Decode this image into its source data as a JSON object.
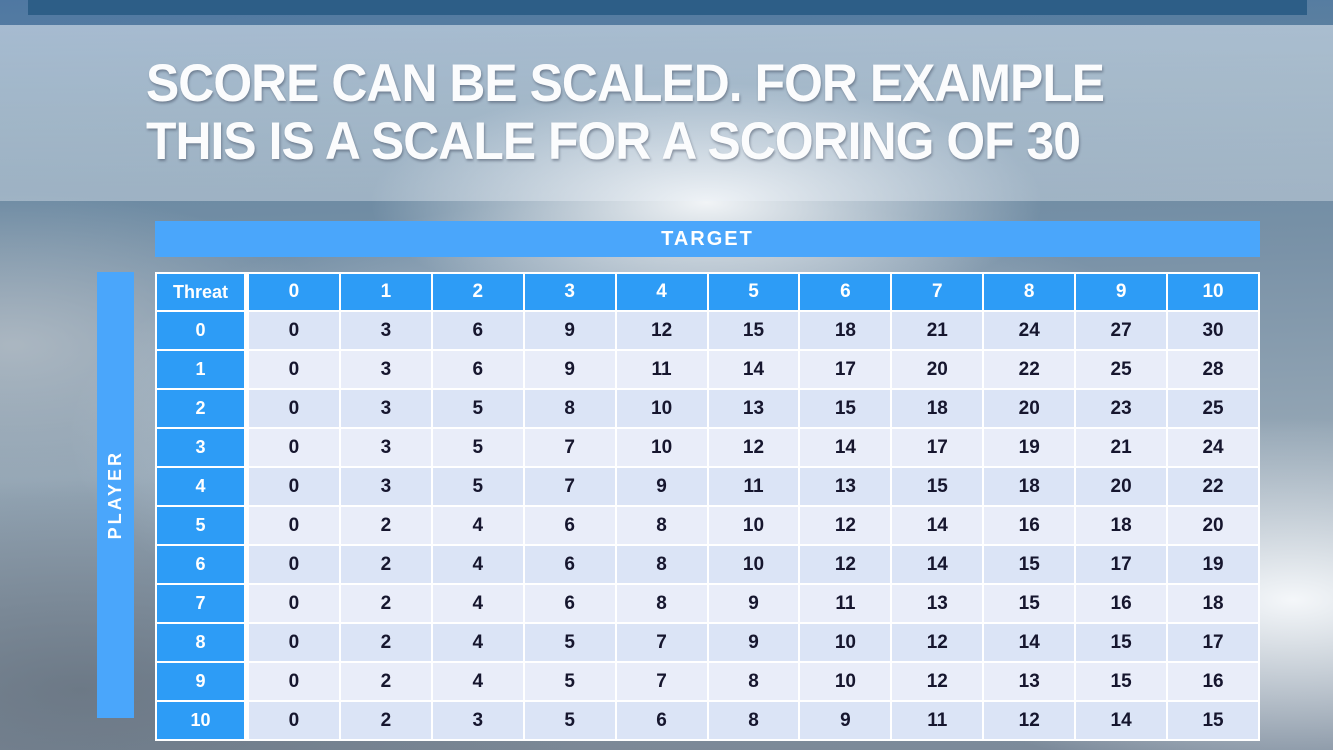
{
  "title": {
    "line1": "SCORE CAN BE SCALED. FOR EXAMPLE",
    "line2": "THIS IS A SCALE FOR A SCORING OF 30"
  },
  "chart_data": {
    "type": "table",
    "title": "SCORE CAN BE SCALED. FOR EXAMPLE THIS IS A SCALE FOR A SCORING OF 30",
    "target_label": "TARGET",
    "player_label": "PLAYER",
    "corner_label": "Threat",
    "column_headers": [
      "0",
      "1",
      "2",
      "3",
      "4",
      "5",
      "6",
      "7",
      "8",
      "9",
      "10"
    ],
    "row_headers": [
      "0",
      "1",
      "2",
      "3",
      "4",
      "5",
      "6",
      "7",
      "8",
      "9",
      "10"
    ],
    "values": [
      [
        0,
        3,
        6,
        9,
        12,
        15,
        18,
        21,
        24,
        27,
        30
      ],
      [
        0,
        3,
        6,
        9,
        11,
        14,
        17,
        20,
        22,
        25,
        28
      ],
      [
        0,
        3,
        5,
        8,
        10,
        13,
        15,
        18,
        20,
        23,
        25
      ],
      [
        0,
        3,
        5,
        7,
        10,
        12,
        14,
        17,
        19,
        21,
        24
      ],
      [
        0,
        3,
        5,
        7,
        9,
        11,
        13,
        15,
        18,
        20,
        22
      ],
      [
        0,
        2,
        4,
        6,
        8,
        10,
        12,
        14,
        16,
        18,
        20
      ],
      [
        0,
        2,
        4,
        6,
        8,
        10,
        12,
        14,
        15,
        17,
        19
      ],
      [
        0,
        2,
        4,
        6,
        8,
        9,
        11,
        13,
        15,
        16,
        18
      ],
      [
        0,
        2,
        4,
        5,
        7,
        9,
        10,
        12,
        14,
        15,
        17
      ],
      [
        0,
        2,
        4,
        5,
        7,
        8,
        10,
        12,
        13,
        15,
        16
      ],
      [
        0,
        2,
        3,
        5,
        6,
        8,
        9,
        11,
        12,
        14,
        15
      ]
    ]
  },
  "colors": {
    "top_bar": "#2d5e87",
    "axis_band_blue": "#4aa6fb",
    "header_blue": "#2d9cf6",
    "row_even": "#dbe4f6",
    "row_odd": "#e9edf9",
    "cell_text": "#16162e",
    "table_gridline": "#ffffff",
    "title_text": "#fbfcfd"
  }
}
